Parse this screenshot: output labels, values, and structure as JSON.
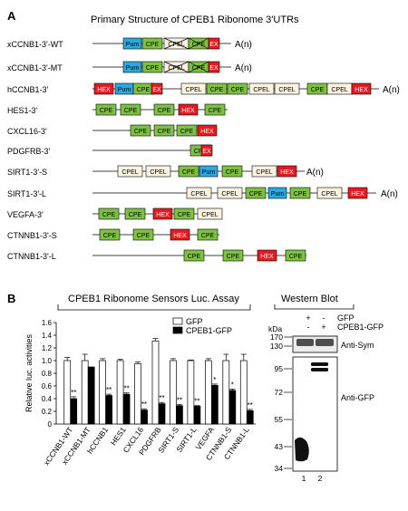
{
  "panel_a": {
    "letter": "A",
    "title": "Primary Structure of CPEB1 Ribonome 3'UTRs",
    "tail": "A(n)",
    "colors": {
      "Pum": "#29a9e1",
      "CPE": "#7dc142",
      "CPEL": "#fbf3e0",
      "HEX": "#e8191f",
      "EX": "#e8191f"
    },
    "rows": [
      {
        "name": "xCCNB1-3'-WT",
        "elements": [
          "Pum",
          "CPE",
          "CPEL",
          "CPE",
          "EX"
        ]
      },
      {
        "name": "xCCNB1-3'-MT",
        "elements": [
          "Pum",
          "CPE",
          "CPEL",
          "CPE",
          "EX"
        ]
      },
      {
        "name": "hCCNB1-3'",
        "elements": [
          "HEX",
          "Pum",
          "CPE",
          "EX",
          "CPEL",
          "CPE",
          "CPE",
          "CPEL",
          "CPEL",
          "CPE",
          "CPEL",
          "HEX"
        ]
      },
      {
        "name": "HES1-3'",
        "elements": [
          "CPE",
          "CPE",
          "CPE",
          "HEX",
          "CPE"
        ]
      },
      {
        "name": "CXCL16-3'",
        "elements": [
          "CPE",
          "CPE",
          "CPE",
          "HEX"
        ]
      },
      {
        "name": "PDGFRB-3'",
        "elements": [
          "CPE",
          "EX"
        ]
      },
      {
        "name": "SIRT1-3'-S",
        "elements": [
          "CPEL",
          "CPEL",
          "CPE",
          "Pum",
          "CPE",
          "CPEL",
          "HEX"
        ]
      },
      {
        "name": "SIRT1-3'-L",
        "elements": [
          "CPEL",
          "CPEL",
          "CPE",
          "Pum",
          "CPE",
          "CPEL",
          "HEX"
        ]
      },
      {
        "name": "VEGFA-3'",
        "elements": [
          "CPE",
          "CPE",
          "HEX",
          "CPE",
          "CPEL"
        ]
      },
      {
        "name": "CTNNB1-3'-S",
        "elements": [
          "CPE",
          "CPE",
          "HEX",
          "CPE"
        ]
      },
      {
        "name": "CTNNB1-3'-L",
        "elements": [
          "CPE",
          "CPE",
          "HEX",
          "CPE"
        ]
      }
    ]
  },
  "panel_b": {
    "letter": "B",
    "chart_title": "CPEB1 Ribonome Sensors Luc. Assay"
  },
  "chart_data": {
    "type": "bar",
    "title": "CPEB1 Ribonome Sensors Luc. Assay",
    "ylabel": "Relative luc. activities",
    "ylim": [
      0,
      1.6
    ],
    "yticks": [
      "0",
      "0.2",
      "0.4",
      "0.6",
      "0.8",
      "1.0",
      "1.2",
      "1.4",
      "1.6"
    ],
    "categories": [
      "xCCNB1-WT",
      "xCCNB1-MT",
      "hCCNB1",
      "HES1",
      "CXCL16",
      "PDGFRB",
      "SIRT1-S",
      "SIRT1-L",
      "VEGFA",
      "CTNNB1-S",
      "CTNNB1-L"
    ],
    "series": [
      {
        "name": "GFP",
        "color": "#ffffff",
        "values": [
          1.0,
          1.0,
          1.0,
          1.0,
          0.95,
          1.31,
          1.0,
          1.0,
          1.0,
          1.0,
          1.0
        ],
        "errors": [
          0.05,
          0.1,
          0.03,
          0.02,
          0.03,
          0.04,
          0.03,
          0.01,
          0.03,
          0.1,
          0.1
        ]
      },
      {
        "name": "CPEB1-GFP",
        "color": "#000000",
        "values": [
          0.4,
          0.9,
          0.45,
          0.47,
          0.22,
          0.32,
          0.29,
          0.28,
          0.61,
          0.53,
          0.21
        ],
        "errors": [
          0.03,
          0.0,
          0.02,
          0.02,
          0.02,
          0.02,
          0.02,
          0.01,
          0.02,
          0.02,
          0.02
        ]
      }
    ],
    "annotations": [
      "**",
      "",
      "**",
      "**",
      "**",
      "**",
      "**",
      "**",
      "*",
      "*",
      "**"
    ],
    "legend": "top-right"
  },
  "western": {
    "title": "Western Blot",
    "row_labels": [
      "GFP",
      "CPEB1-GFP"
    ],
    "lane1_signs": [
      "+",
      "-"
    ],
    "lane2_signs": [
      "-",
      "+"
    ],
    "kda_label": "kDa",
    "markers": [
      "170",
      "130",
      "95",
      "72",
      "55",
      "43",
      "34"
    ],
    "band_labels": [
      "Anti-Sym",
      "Anti-GFP"
    ],
    "lane_numbers": [
      "1",
      "2"
    ]
  }
}
